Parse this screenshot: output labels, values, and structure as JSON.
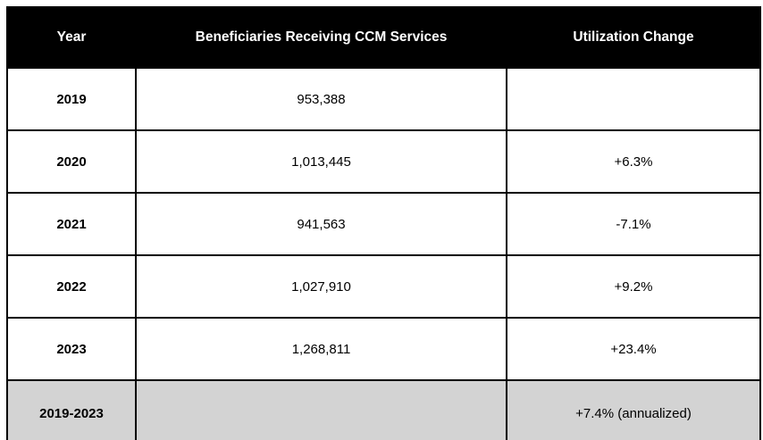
{
  "chart_data": {
    "type": "table",
    "title": "",
    "columns": [
      "Year",
      "Beneficiaries Receiving CCM Services",
      "Utilization Change"
    ],
    "rows": [
      {
        "year": "2019",
        "beneficiaries": "953,388",
        "change": ""
      },
      {
        "year": "2020",
        "beneficiaries": "1,013,445",
        "change": "+6.3%"
      },
      {
        "year": "2021",
        "beneficiaries": "941,563",
        "change": "-7.1%"
      },
      {
        "year": "2022",
        "beneficiaries": "1,027,910",
        "change": "+9.2%"
      },
      {
        "year": "2023",
        "beneficiaries": "1,268,811",
        "change": "+23.4%"
      },
      {
        "year": "2019-2023",
        "beneficiaries": "",
        "change": "+7.4% (annualized)"
      }
    ]
  },
  "table": {
    "header": {
      "year": "Year",
      "beneficiaries": "Beneficiaries Receiving CCM Services",
      "change": "Utilization Change"
    },
    "rows": [
      {
        "year": "2019",
        "beneficiaries": "953,388",
        "change": ""
      },
      {
        "year": "2020",
        "beneficiaries": "1,013,445",
        "change": "+6.3%"
      },
      {
        "year": "2021",
        "beneficiaries": "941,563",
        "change": "-7.1%"
      },
      {
        "year": "2022",
        "beneficiaries": "1,027,910",
        "change": "+9.2%"
      },
      {
        "year": "2023",
        "beneficiaries": "1,268,811",
        "change": "+23.4%"
      },
      {
        "year": "2019-2023",
        "beneficiaries": "",
        "change": "+7.4% (annualized)"
      }
    ],
    "colors": {
      "header_bg": "#000000",
      "header_text": "#ffffff",
      "summary_row_bg": "#d3d3d3",
      "border": "#000000",
      "body_text": "#000000"
    }
  }
}
